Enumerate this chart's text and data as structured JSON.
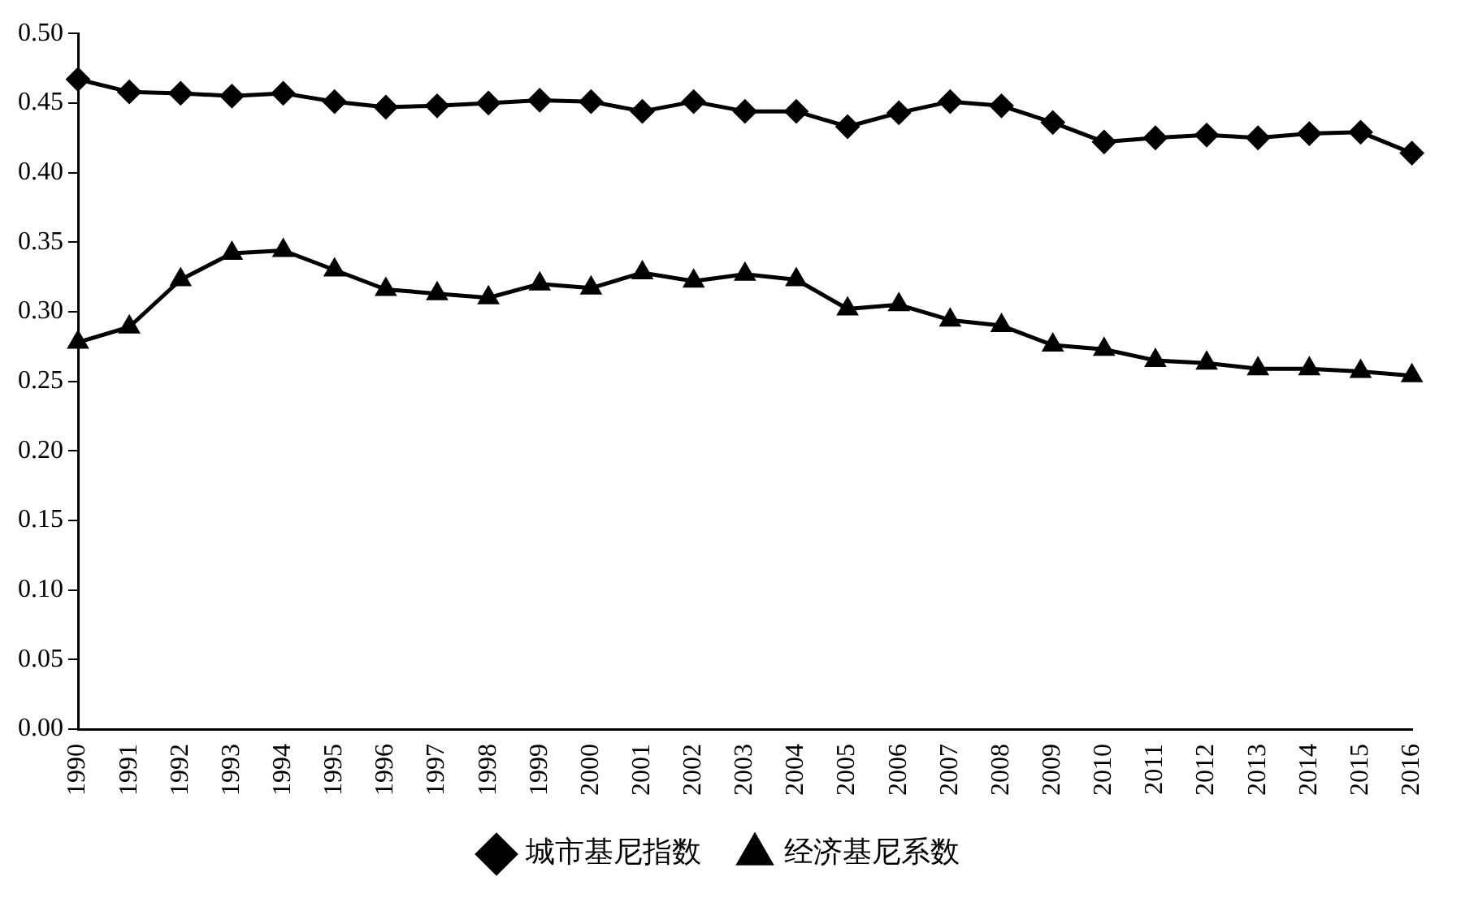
{
  "chart_data": {
    "type": "line",
    "categories": [
      "1990",
      "1991",
      "1992",
      "1993",
      "1994",
      "1995",
      "1996",
      "1997",
      "1998",
      "1999",
      "2000",
      "2001",
      "2002",
      "2003",
      "2004",
      "2005",
      "2006",
      "2007",
      "2008",
      "2009",
      "2010",
      "2011",
      "2012",
      "2013",
      "2014",
      "2015",
      "2016"
    ],
    "series": [
      {
        "name": "城市基尼指数",
        "color": "#000000",
        "marker": "diamond",
        "values": [
          0.467,
          0.458,
          0.457,
          0.455,
          0.457,
          0.451,
          0.447,
          0.448,
          0.45,
          0.452,
          0.451,
          0.444,
          0.451,
          0.444,
          0.444,
          0.433,
          0.443,
          0.451,
          0.448,
          0.436,
          0.422,
          0.425,
          0.427,
          0.425,
          0.428,
          0.429,
          0.414
        ]
      },
      {
        "name": "经济基尼系数",
        "color": "#000000",
        "marker": "triangle",
        "values": [
          0.278,
          0.289,
          0.323,
          0.342,
          0.344,
          0.33,
          0.316,
          0.313,
          0.31,
          0.32,
          0.317,
          0.328,
          0.322,
          0.327,
          0.323,
          0.302,
          0.305,
          0.294,
          0.29,
          0.276,
          0.273,
          0.265,
          0.263,
          0.259,
          0.259,
          0.257,
          0.254
        ]
      }
    ],
    "ylim": [
      0,
      0.5
    ],
    "yticks": [
      {
        "value": 0,
        "label": "0.00"
      },
      {
        "value": 0.05,
        "label": "0.05"
      },
      {
        "value": 0.1,
        "label": "0.10"
      },
      {
        "value": 0.15,
        "label": "0.15"
      },
      {
        "value": 0.2,
        "label": "0.20"
      },
      {
        "value": 0.25,
        "label": "0.25"
      },
      {
        "value": 0.3,
        "label": "0.30"
      },
      {
        "value": 0.35,
        "label": "0.35"
      },
      {
        "value": 0.4,
        "label": "0.40"
      },
      {
        "value": 0.45,
        "label": "0.45"
      },
      {
        "value": 0.5,
        "label": "0.50"
      }
    ],
    "grid": false,
    "legend": "bottom",
    "line_style": "solid"
  }
}
